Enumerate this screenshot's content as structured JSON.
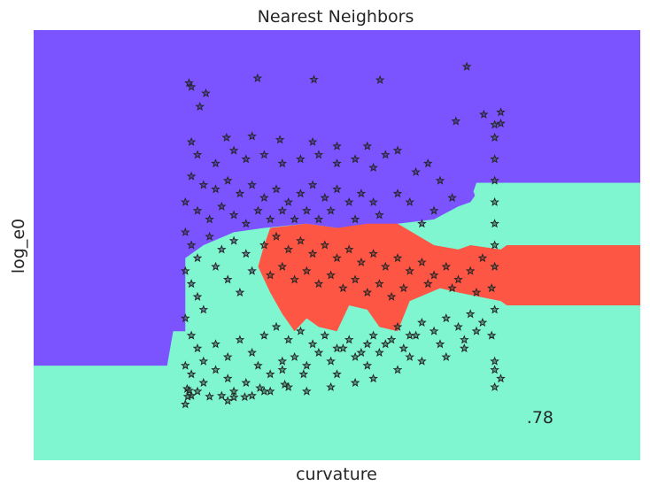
{
  "chart_data": {
    "type": "scatter",
    "title": "Nearest Neighbors",
    "xlabel": "curvature",
    "ylabel": "log_e0",
    "annotation": ".78",
    "xticks": "none",
    "yticks": "none",
    "grid": false,
    "colors": {
      "region_class_0": "#7b54ff",
      "region_class_1": "#7ff5d0",
      "region_class_2": "#fd5645",
      "points_edge": "#262626",
      "points_class_0_fill": "#3a2a70",
      "points_class_1_fill": "#2e5a3c",
      "points_class_2_fill": "#7a3020"
    },
    "marker": "star",
    "xlim": [
      0,
      1
    ],
    "ylim": [
      0,
      1
    ],
    "decision_regions": [
      {
        "class": 0,
        "polygon": [
          [
            0,
            1
          ],
          [
            1,
            1
          ],
          [
            1,
            0.64
          ],
          [
            0.99,
            0.64
          ],
          [
            0.76,
            0.64
          ],
          [
            0.73,
            0.62
          ],
          [
            0.72,
            0.6
          ],
          [
            0.7,
            0.59
          ],
          [
            0.66,
            0.56
          ],
          [
            0.6,
            0.55
          ],
          [
            0.55,
            0.54
          ],
          [
            0.5,
            0.54
          ],
          [
            0.45,
            0.55
          ],
          [
            0.38,
            0.54
          ],
          [
            0.33,
            0.53
          ],
          [
            0.28,
            0.5
          ],
          [
            0.25,
            0.47
          ],
          [
            0.25,
            0.3
          ],
          [
            0.23,
            0.3
          ],
          [
            0.22,
            0.22
          ],
          [
            0,
            0.22
          ]
        ]
      },
      {
        "class": 1,
        "polygon": [
          [
            0.73,
            0.645
          ],
          [
            1,
            0.645
          ],
          [
            1,
            0.605
          ],
          [
            0.73,
            0.605
          ],
          [
            0.725,
            0.625
          ]
        ]
      },
      {
        "class": 2,
        "polygon": [
          [
            0.39,
            0.54
          ],
          [
            0.45,
            0.55
          ],
          [
            0.5,
            0.54
          ],
          [
            0.55,
            0.55
          ],
          [
            0.6,
            0.55
          ],
          [
            0.66,
            0.5
          ],
          [
            0.7,
            0.49
          ],
          [
            0.72,
            0.5
          ],
          [
            0.77,
            0.49
          ],
          [
            0.78,
            0.5
          ],
          [
            1,
            0.5
          ],
          [
            1,
            0.36
          ],
          [
            0.78,
            0.36
          ],
          [
            0.77,
            0.37
          ],
          [
            0.7,
            0.39
          ],
          [
            0.67,
            0.4
          ],
          [
            0.62,
            0.37
          ],
          [
            0.6,
            0.3
          ],
          [
            0.57,
            0.31
          ],
          [
            0.55,
            0.35
          ],
          [
            0.52,
            0.36
          ],
          [
            0.5,
            0.3
          ],
          [
            0.47,
            0.31
          ],
          [
            0.45,
            0.33
          ],
          [
            0.43,
            0.3
          ],
          [
            0.41,
            0.34
          ],
          [
            0.39,
            0.39
          ],
          [
            0.37,
            0.45
          ],
          [
            0.38,
            0.5
          ]
        ]
      }
    ],
    "points": [
      [
        0.256,
        0.877,
        0
      ],
      [
        0.26,
        0.868,
        0
      ],
      [
        0.284,
        0.853,
        0
      ],
      [
        0.274,
        0.822,
        0
      ],
      [
        0.369,
        0.888,
        0
      ],
      [
        0.462,
        0.885,
        0
      ],
      [
        0.571,
        0.884,
        0
      ],
      [
        0.714,
        0.915,
        0
      ],
      [
        0.696,
        0.788,
        0
      ],
      [
        0.742,
        0.804,
        0
      ],
      [
        0.77,
        0.809,
        0
      ],
      [
        0.77,
        0.783,
        0
      ],
      [
        0.36,
        0.753,
        0
      ],
      [
        0.318,
        0.75,
        0
      ],
      [
        0.406,
        0.745,
        0
      ],
      [
        0.46,
        0.74,
        0
      ],
      [
        0.5,
        0.73,
        0
      ],
      [
        0.55,
        0.73,
        0
      ],
      [
        0.6,
        0.72,
        0
      ],
      [
        0.65,
        0.69,
        0
      ],
      [
        0.26,
        0.74,
        0
      ],
      [
        0.27,
        0.71,
        0
      ],
      [
        0.3,
        0.69,
        0
      ],
      [
        0.33,
        0.72,
        0
      ],
      [
        0.35,
        0.7,
        0
      ],
      [
        0.38,
        0.71,
        0
      ],
      [
        0.41,
        0.69,
        0
      ],
      [
        0.44,
        0.7,
        0
      ],
      [
        0.47,
        0.71,
        0
      ],
      [
        0.5,
        0.69,
        0
      ],
      [
        0.53,
        0.7,
        0
      ],
      [
        0.56,
        0.68,
        0
      ],
      [
        0.58,
        0.71,
        0
      ],
      [
        0.63,
        0.67,
        0
      ],
      [
        0.67,
        0.65,
        0
      ],
      [
        0.69,
        0.61,
        0
      ],
      [
        0.26,
        0.66,
        0
      ],
      [
        0.28,
        0.64,
        0
      ],
      [
        0.3,
        0.63,
        0
      ],
      [
        0.32,
        0.65,
        0
      ],
      [
        0.34,
        0.62,
        0
      ],
      [
        0.36,
        0.64,
        0
      ],
      [
        0.38,
        0.61,
        0
      ],
      [
        0.4,
        0.63,
        0
      ],
      [
        0.42,
        0.6,
        0
      ],
      [
        0.44,
        0.62,
        0
      ],
      [
        0.46,
        0.64,
        0
      ],
      [
        0.48,
        0.61,
        0
      ],
      [
        0.5,
        0.63,
        0
      ],
      [
        0.52,
        0.6,
        0
      ],
      [
        0.54,
        0.62,
        0
      ],
      [
        0.56,
        0.6,
        0
      ],
      [
        0.6,
        0.62,
        0
      ],
      [
        0.62,
        0.6,
        0
      ],
      [
        0.66,
        0.58,
        0
      ],
      [
        0.25,
        0.6,
        0
      ],
      [
        0.27,
        0.58,
        0
      ],
      [
        0.29,
        0.56,
        0
      ],
      [
        0.31,
        0.59,
        0
      ],
      [
        0.33,
        0.57,
        0
      ],
      [
        0.35,
        0.55,
        0
      ],
      [
        0.37,
        0.58,
        0
      ],
      [
        0.39,
        0.56,
        0
      ],
      [
        0.41,
        0.58,
        0
      ],
      [
        0.43,
        0.56,
        0
      ],
      [
        0.45,
        0.58,
        0
      ],
      [
        0.47,
        0.56,
        0
      ],
      [
        0.49,
        0.58,
        0
      ],
      [
        0.53,
        0.56,
        0
      ],
      [
        0.57,
        0.57,
        0
      ],
      [
        0.64,
        0.55,
        0
      ],
      [
        0.25,
        0.53,
        0
      ],
      [
        0.26,
        0.5,
        0
      ],
      [
        0.27,
        0.47,
        0
      ],
      [
        0.29,
        0.52,
        0
      ],
      [
        0.31,
        0.49,
        0
      ],
      [
        0.33,
        0.51,
        0
      ],
      [
        0.35,
        0.48,
        0
      ],
      [
        0.25,
        0.44,
        0
      ],
      [
        0.26,
        0.41,
        0
      ],
      [
        0.27,
        0.38,
        0
      ],
      [
        0.28,
        0.35,
        0
      ],
      [
        0.25,
        0.33,
        0
      ],
      [
        0.3,
        0.45,
        0
      ],
      [
        0.32,
        0.42,
        0
      ],
      [
        0.34,
        0.39,
        0
      ],
      [
        0.36,
        0.44,
        0
      ],
      [
        0.38,
        0.5,
        2
      ],
      [
        0.4,
        0.52,
        2
      ],
      [
        0.42,
        0.49,
        2
      ],
      [
        0.44,
        0.51,
        2
      ],
      [
        0.46,
        0.48,
        2
      ],
      [
        0.48,
        0.5,
        2
      ],
      [
        0.5,
        0.47,
        2
      ],
      [
        0.52,
        0.49,
        2
      ],
      [
        0.54,
        0.46,
        2
      ],
      [
        0.56,
        0.48,
        2
      ],
      [
        0.58,
        0.45,
        2
      ],
      [
        0.6,
        0.47,
        2
      ],
      [
        0.62,
        0.44,
        2
      ],
      [
        0.64,
        0.46,
        2
      ],
      [
        0.66,
        0.43,
        2
      ],
      [
        0.68,
        0.45,
        2
      ],
      [
        0.7,
        0.42,
        2
      ],
      [
        0.72,
        0.44,
        2
      ],
      [
        0.74,
        0.47,
        2
      ],
      [
        0.39,
        0.43,
        2
      ],
      [
        0.41,
        0.45,
        2
      ],
      [
        0.43,
        0.42,
        2
      ],
      [
        0.45,
        0.44,
        2
      ],
      [
        0.47,
        0.41,
        2
      ],
      [
        0.49,
        0.43,
        2
      ],
      [
        0.51,
        0.4,
        2
      ],
      [
        0.53,
        0.42,
        2
      ],
      [
        0.55,
        0.39,
        2
      ],
      [
        0.57,
        0.41,
        2
      ],
      [
        0.59,
        0.38,
        2
      ],
      [
        0.61,
        0.4,
        2
      ],
      [
        0.65,
        0.41,
        2
      ],
      [
        0.69,
        0.4,
        2
      ],
      [
        0.73,
        0.39,
        2
      ],
      [
        0.26,
        0.29,
        1
      ],
      [
        0.27,
        0.26,
        1
      ],
      [
        0.28,
        0.23,
        1
      ],
      [
        0.3,
        0.27,
        1
      ],
      [
        0.32,
        0.24,
        1
      ],
      [
        0.34,
        0.28,
        1
      ],
      [
        0.36,
        0.25,
        1
      ],
      [
        0.38,
        0.29,
        1
      ],
      [
        0.4,
        0.31,
        1
      ],
      [
        0.42,
        0.28,
        1
      ],
      [
        0.44,
        0.3,
        1
      ],
      [
        0.46,
        0.27,
        1
      ],
      [
        0.48,
        0.29,
        1
      ],
      [
        0.5,
        0.26,
        1
      ],
      [
        0.52,
        0.28,
        1
      ],
      [
        0.54,
        0.25,
        1
      ],
      [
        0.56,
        0.29,
        1
      ],
      [
        0.58,
        0.27,
        1
      ],
      [
        0.6,
        0.31,
        1
      ],
      [
        0.62,
        0.29,
        1
      ],
      [
        0.64,
        0.32,
        1
      ],
      [
        0.66,
        0.3,
        1
      ],
      [
        0.68,
        0.33,
        1
      ],
      [
        0.7,
        0.31,
        1
      ],
      [
        0.72,
        0.34,
        1
      ],
      [
        0.74,
        0.32,
        1
      ],
      [
        0.755,
        0.29,
        1
      ],
      [
        0.26,
        0.2,
        1
      ],
      [
        0.28,
        0.18,
        1
      ],
      [
        0.3,
        0.21,
        1
      ],
      [
        0.32,
        0.19,
        1
      ],
      [
        0.33,
        0.16,
        1
      ],
      [
        0.35,
        0.18,
        1
      ],
      [
        0.37,
        0.22,
        1
      ],
      [
        0.39,
        0.2,
        1
      ],
      [
        0.41,
        0.23,
        1
      ],
      [
        0.43,
        0.24,
        1
      ],
      [
        0.45,
        0.22,
        1
      ],
      [
        0.47,
        0.25,
        1
      ],
      [
        0.49,
        0.23,
        1
      ],
      [
        0.51,
        0.26,
        1
      ],
      [
        0.53,
        0.24,
        1
      ],
      [
        0.55,
        0.27,
        1
      ],
      [
        0.57,
        0.25,
        1
      ],
      [
        0.59,
        0.28,
        1
      ],
      [
        0.61,
        0.26,
        1
      ],
      [
        0.63,
        0.29,
        1
      ],
      [
        0.67,
        0.27,
        1
      ],
      [
        0.27,
        0.16,
        1
      ],
      [
        0.31,
        0.15,
        1
      ],
      [
        0.25,
        0.13,
        1
      ],
      [
        0.36,
        0.15,
        1
      ],
      [
        0.39,
        0.16,
        1
      ],
      [
        0.42,
        0.17,
        1
      ],
      [
        0.45,
        0.16,
        1
      ],
      [
        0.49,
        0.17,
        1
      ],
      [
        0.53,
        0.18,
        1
      ],
      [
        0.56,
        0.19,
        1
      ],
      [
        0.6,
        0.21,
        1
      ],
      [
        0.64,
        0.23,
        1
      ],
      [
        0.68,
        0.24,
        1
      ],
      [
        0.71,
        0.26,
        1
      ],
      [
        0.76,
        0.23,
        1
      ],
      [
        0.76,
        0.21,
        1
      ],
      [
        0.77,
        0.19,
        1
      ],
      [
        0.76,
        0.17,
        1
      ],
      [
        0.253,
        0.166,
        1
      ],
      [
        0.33,
        0.146,
        1
      ],
      [
        0.38,
        0.16,
        1
      ],
      [
        0.41,
        0.21,
        1
      ],
      [
        0.445,
        0.2,
        1
      ],
      [
        0.5,
        0.2,
        1
      ],
      [
        0.55,
        0.22,
        1
      ],
      [
        0.62,
        0.24,
        1
      ],
      [
        0.71,
        0.28,
        1
      ],
      [
        0.73,
        0.3,
        1
      ],
      [
        0.76,
        0.35,
        1
      ],
      [
        0.755,
        0.4,
        1
      ],
      [
        0.76,
        0.45,
        1
      ],
      [
        0.76,
        0.5,
        1
      ],
      [
        0.76,
        0.55,
        1
      ],
      [
        0.76,
        0.6,
        1
      ],
      [
        0.76,
        0.65,
        1
      ],
      [
        0.76,
        0.7,
        1
      ],
      [
        0.76,
        0.75,
        1
      ],
      [
        0.76,
        0.78,
        1
      ],
      [
        0.25,
        0.22,
        1
      ],
      [
        0.26,
        0.15,
        1
      ],
      [
        0.29,
        0.148,
        1
      ],
      [
        0.32,
        0.138,
        1
      ],
      [
        0.254,
        0.148,
        1
      ],
      [
        0.256,
        0.162,
        1
      ],
      [
        0.348,
        0.147,
        1
      ],
      [
        0.373,
        0.168,
        1
      ],
      [
        0.414,
        0.176,
        1
      ]
    ]
  }
}
